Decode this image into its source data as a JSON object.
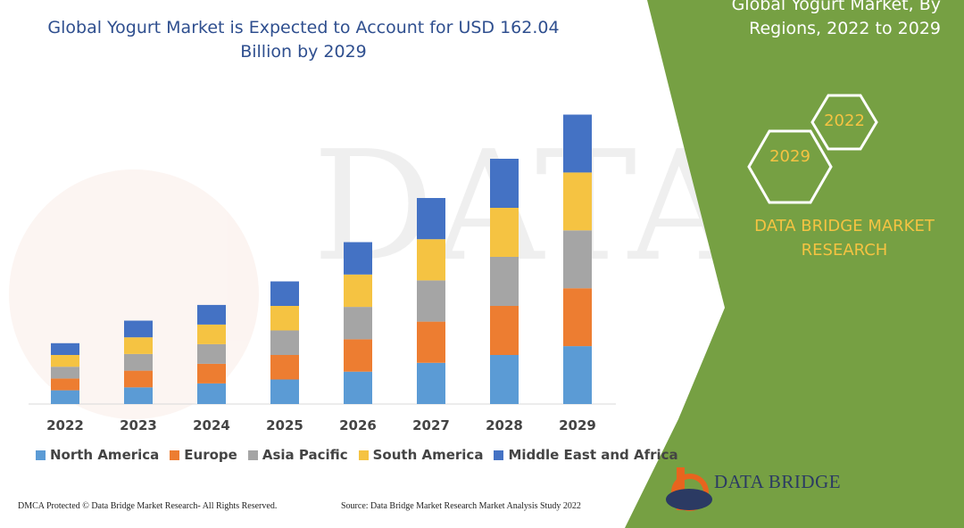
{
  "title": "Global Yogurt Market is Expected to Account for USD 162.04 Billion by 2029",
  "right_panel": {
    "title": "Global Yogurt Market, By Regions, 2022 to 2029",
    "hex_labels": [
      "2022",
      "2029"
    ],
    "brand": "DATA BRIDGE MARKET RESEARCH"
  },
  "footer": {
    "left": "DMCA Protected © Data Bridge Market Research- All Rights Reserved.",
    "right": "Source: Data Bridge Market Research Market Analysis Study 2022"
  },
  "logo": {
    "text": "DATA BRIDGE"
  },
  "colors": {
    "panel": "#76a043",
    "accent": "#f5c342"
  },
  "chart_data": {
    "type": "bar",
    "stacked": true,
    "categories": [
      "2022",
      "2023",
      "2024",
      "2025",
      "2026",
      "2027",
      "2028",
      "2029"
    ],
    "series": [
      {
        "name": "North America",
        "color": "#5b9bd5",
        "values": [
          14,
          17,
          21,
          25,
          33,
          42,
          50,
          59
        ]
      },
      {
        "name": "Europe",
        "color": "#ed7d31",
        "values": [
          12,
          17,
          20,
          25,
          33,
          42,
          50,
          59
        ]
      },
      {
        "name": "Asia Pacific",
        "color": "#a5a5a5",
        "values": [
          12,
          17,
          20,
          25,
          33,
          42,
          50,
          59
        ]
      },
      {
        "name": "South America",
        "color": "#f5c342",
        "values": [
          12,
          17,
          20,
          25,
          33,
          42,
          50,
          59
        ]
      },
      {
        "name": "Middle East and Africa",
        "color": "#4472c4",
        "values": [
          12,
          17,
          20,
          25,
          33,
          42,
          50,
          59
        ]
      }
    ],
    "ylim": [
      0,
      300
    ],
    "grid": false,
    "legend": "bottom"
  }
}
